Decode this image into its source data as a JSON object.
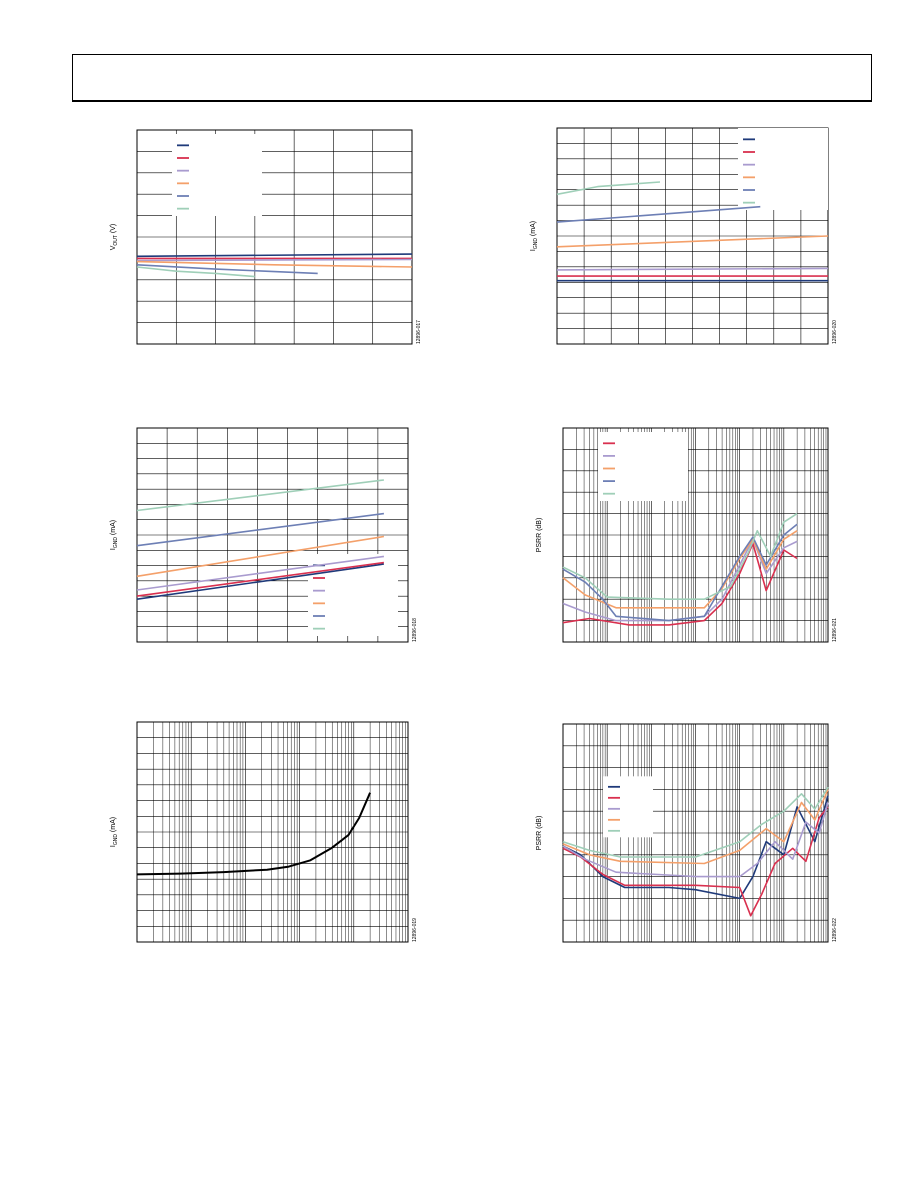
{
  "header": {
    "title": ""
  },
  "chart_data": [
    {
      "id": "c1",
      "type": "line",
      "ylabel_main": "V",
      "ylabel_sub": "OUT",
      "ylabel_tail": " (V)",
      "figure_id": "12896-017",
      "grid": {
        "x_div": 7,
        "y_div": 10,
        "minor_x": false,
        "log_x": false
      },
      "ylim": [
        0,
        10
      ],
      "xlim": [
        0,
        7
      ],
      "legend": {
        "position": "top-left",
        "entries": 6
      },
      "series": [
        {
          "color": "#1f3a7a",
          "points": [
            [
              0,
              4.1
            ],
            [
              7,
              4.2
            ]
          ]
        },
        {
          "color": "#d9304f",
          "points": [
            [
              0,
              4.0
            ],
            [
              7,
              4.0
            ]
          ]
        },
        {
          "color": "#a99bcf",
          "points": [
            [
              0,
              3.9
            ],
            [
              7,
              3.95
            ]
          ]
        },
        {
          "color": "#f4a06a",
          "points": [
            [
              0,
              3.85
            ],
            [
              3.5,
              3.7
            ],
            [
              7,
              3.6
            ]
          ]
        },
        {
          "color": "#6d7fb5",
          "points": [
            [
              0,
              3.7
            ],
            [
              2,
              3.5
            ],
            [
              4.6,
              3.3
            ]
          ]
        },
        {
          "color": "#9fcfb8",
          "points": [
            [
              0,
              3.6
            ],
            [
              1,
              3.4
            ],
            [
              2,
              3.3
            ],
            [
              3,
              3.15
            ]
          ]
        }
      ]
    },
    {
      "id": "c2",
      "type": "line",
      "ylabel_main": "I",
      "ylabel_sub": "GND",
      "ylabel_tail": " (mA)",
      "figure_id": "12896-020",
      "grid": {
        "x_div": 10,
        "y_div": 14,
        "minor_x": false,
        "log_x": false
      },
      "ylim": [
        0,
        14
      ],
      "xlim": [
        0,
        10
      ],
      "legend": {
        "position": "top-right",
        "entries": 6
      },
      "series": [
        {
          "color": "#1f3a7a",
          "points": [
            [
              0,
              4.1
            ],
            [
              10,
              4.1
            ]
          ]
        },
        {
          "color": "#d9304f",
          "points": [
            [
              0,
              4.4
            ],
            [
              10,
              4.4
            ]
          ]
        },
        {
          "color": "#a99bcf",
          "points": [
            [
              0,
              4.8
            ],
            [
              10,
              4.9
            ]
          ]
        },
        {
          "color": "#f4a06a",
          "points": [
            [
              0,
              6.3
            ],
            [
              10,
              7.0
            ]
          ]
        },
        {
          "color": "#6d7fb5",
          "points": [
            [
              0,
              7.9
            ],
            [
              7.5,
              8.9
            ]
          ]
        },
        {
          "color": "#9fcfb8",
          "points": [
            [
              0,
              9.7
            ],
            [
              1.5,
              10.2
            ],
            [
              3.8,
              10.5
            ]
          ]
        }
      ]
    },
    {
      "id": "c3",
      "type": "line",
      "ylabel_main": "I",
      "ylabel_sub": "GND",
      "ylabel_tail": " (mA)",
      "figure_id": "12896-018",
      "grid": {
        "x_div": 9,
        "y_div": 14,
        "minor_x": false,
        "log_x": false
      },
      "ylim": [
        0,
        14
      ],
      "xlim": [
        0,
        9
      ],
      "legend": {
        "position": "bottom-right",
        "entries": 6
      },
      "series": [
        {
          "color": "#1f3a7a",
          "points": [
            [
              0,
              2.8
            ],
            [
              8.2,
              5.1
            ]
          ]
        },
        {
          "color": "#d9304f",
          "points": [
            [
              0,
              3.0
            ],
            [
              8.2,
              5.2
            ]
          ]
        },
        {
          "color": "#a99bcf",
          "points": [
            [
              0,
              3.4
            ],
            [
              8.2,
              5.6
            ]
          ]
        },
        {
          "color": "#f4a06a",
          "points": [
            [
              0,
              4.3
            ],
            [
              8.2,
              6.9
            ]
          ]
        },
        {
          "color": "#6d7fb5",
          "points": [
            [
              0,
              6.3
            ],
            [
              8.2,
              8.4
            ]
          ]
        },
        {
          "color": "#9fcfb8",
          "points": [
            [
              0,
              8.6
            ],
            [
              8.2,
              10.6
            ]
          ]
        }
      ]
    },
    {
      "id": "c4",
      "type": "line",
      "ylabel_main": "PSRR (dB)",
      "ylabel_sub": "",
      "ylabel_tail": "",
      "figure_id": "12896-021",
      "grid": {
        "x_div": 6,
        "y_div": 10,
        "minor_x": true,
        "log_x": true
      },
      "ylim": [
        0,
        10
      ],
      "xlim": [
        0,
        6
      ],
      "legend": {
        "position": "top-left",
        "entries": 5
      },
      "series": [
        {
          "color": "#d9304f",
          "points": [
            [
              0,
              0.9
            ],
            [
              0.6,
              1.1
            ],
            [
              1.5,
              0.8
            ],
            [
              2.4,
              0.8
            ],
            [
              3.2,
              1.0
            ],
            [
              3.6,
              1.8
            ],
            [
              4.0,
              3.2
            ],
            [
              4.3,
              4.6
            ],
            [
              4.6,
              2.4
            ],
            [
              5.0,
              4.3
            ],
            [
              5.3,
              3.9
            ]
          ]
        },
        {
          "color": "#a99bcf",
          "points": [
            [
              0,
              1.8
            ],
            [
              0.5,
              1.4
            ],
            [
              1.2,
              1.0
            ],
            [
              2.4,
              1.0
            ],
            [
              3.2,
              1.2
            ],
            [
              3.6,
              2.0
            ],
            [
              4.0,
              3.6
            ],
            [
              4.3,
              4.8
            ],
            [
              4.6,
              3.2
            ],
            [
              5.0,
              4.4
            ],
            [
              5.3,
              4.7
            ]
          ]
        },
        {
          "color": "#f4a06a",
          "points": [
            [
              0,
              3.0
            ],
            [
              0.5,
              2.2
            ],
            [
              1.2,
              1.6
            ],
            [
              3.2,
              1.6
            ],
            [
              3.6,
              2.5
            ],
            [
              4.0,
              3.9
            ],
            [
              4.3,
              4.8
            ],
            [
              4.6,
              3.4
            ],
            [
              5.0,
              4.8
            ],
            [
              5.3,
              5.2
            ]
          ]
        },
        {
          "color": "#6d7fb5",
          "points": [
            [
              0,
              3.4
            ],
            [
              0.5,
              2.8
            ],
            [
              0.9,
              2.0
            ],
            [
              1.2,
              1.2
            ],
            [
              2.4,
              1.0
            ],
            [
              3.2,
              1.2
            ],
            [
              3.6,
              2.6
            ],
            [
              4.0,
              4.0
            ],
            [
              4.3,
              4.9
            ],
            [
              4.6,
              3.6
            ],
            [
              5.0,
              5.0
            ],
            [
              5.3,
              5.5
            ]
          ]
        },
        {
          "color": "#9fcfb8",
          "points": [
            [
              0,
              3.5
            ],
            [
              0.5,
              3.0
            ],
            [
              1.0,
              2.1
            ],
            [
              2.4,
              2.0
            ],
            [
              3.2,
              2.0
            ],
            [
              3.8,
              2.6
            ],
            [
              4.2,
              4.2
            ],
            [
              4.4,
              5.2
            ],
            [
              4.7,
              4.0
            ],
            [
              5.0,
              5.6
            ],
            [
              5.3,
              6.0
            ]
          ]
        }
      ]
    },
    {
      "id": "c5",
      "type": "line",
      "ylabel_main": "I",
      "ylabel_sub": "GND",
      "ylabel_tail": " (mA)",
      "figure_id": "12896-019",
      "grid": {
        "x_div": 5,
        "y_div": 14,
        "minor_x": true,
        "log_x": true
      },
      "ylim": [
        0,
        14
      ],
      "xlim": [
        0,
        5
      ],
      "legend": {
        "position": "none",
        "entries": 0
      },
      "series": [
        {
          "color": "#000000",
          "points": [
            [
              0,
              4.3
            ],
            [
              0.8,
              4.35
            ],
            [
              1.6,
              4.45
            ],
            [
              2.4,
              4.6
            ],
            [
              2.8,
              4.8
            ],
            [
              3.2,
              5.2
            ],
            [
              3.6,
              6.0
            ],
            [
              3.9,
              6.8
            ],
            [
              4.1,
              7.9
            ],
            [
              4.3,
              9.5
            ]
          ]
        }
      ]
    },
    {
      "id": "c6",
      "type": "line",
      "ylabel_main": "PSRR (dB)",
      "ylabel_sub": "",
      "ylabel_tail": "",
      "figure_id": "12896-022",
      "grid": {
        "x_div": 6,
        "y_div": 10,
        "minor_x": true,
        "log_x": true
      },
      "ylim": [
        0,
        10
      ],
      "xlim": [
        0,
        6
      ],
      "legend": {
        "position": "middle-left",
        "entries": 5
      },
      "series": [
        {
          "color": "#1f3a7a",
          "points": [
            [
              0,
              4.4
            ],
            [
              0.4,
              4.0
            ],
            [
              0.9,
              3.0
            ],
            [
              1.4,
              2.5
            ],
            [
              2.4,
              2.5
            ],
            [
              3.0,
              2.4
            ],
            [
              4.0,
              2.0
            ],
            [
              4.3,
              3.0
            ],
            [
              4.6,
              4.6
            ],
            [
              5.0,
              4.0
            ],
            [
              5.3,
              6.2
            ],
            [
              5.7,
              4.6
            ],
            [
              6.0,
              6.7
            ]
          ]
        },
        {
          "color": "#d9304f",
          "points": [
            [
              0,
              4.3
            ],
            [
              0.4,
              3.9
            ],
            [
              0.9,
              3.1
            ],
            [
              1.4,
              2.6
            ],
            [
              3.0,
              2.6
            ],
            [
              4.0,
              2.5
            ],
            [
              4.25,
              1.2
            ],
            [
              4.5,
              2.2
            ],
            [
              4.8,
              3.6
            ],
            [
              5.2,
              4.3
            ],
            [
              5.5,
              3.7
            ],
            [
              5.8,
              5.7
            ],
            [
              6.0,
              6.2
            ]
          ]
        },
        {
          "color": "#a99bcf",
          "points": [
            [
              0,
              4.4
            ],
            [
              0.5,
              3.8
            ],
            [
              1.2,
              3.2
            ],
            [
              3.0,
              3.0
            ],
            [
              4.0,
              3.0
            ],
            [
              4.4,
              3.6
            ],
            [
              4.8,
              4.6
            ],
            [
              5.2,
              3.8
            ],
            [
              5.5,
              5.5
            ],
            [
              5.8,
              5.0
            ],
            [
              6.0,
              6.4
            ]
          ]
        },
        {
          "color": "#f4a06a",
          "points": [
            [
              0,
              4.5
            ],
            [
              0.6,
              4.0
            ],
            [
              1.3,
              3.7
            ],
            [
              3.2,
              3.6
            ],
            [
              4.0,
              4.2
            ],
            [
              4.6,
              5.2
            ],
            [
              5.0,
              4.6
            ],
            [
              5.4,
              6.4
            ],
            [
              5.7,
              5.6
            ],
            [
              6.0,
              7.0
            ]
          ]
        },
        {
          "color": "#9fcfb8",
          "points": [
            [
              0,
              4.6
            ],
            [
              0.6,
              4.2
            ],
            [
              1.3,
              3.9
            ],
            [
              3.0,
              3.9
            ],
            [
              4.0,
              4.6
            ],
            [
              4.5,
              5.4
            ],
            [
              5.0,
              6.0
            ],
            [
              5.4,
              6.8
            ],
            [
              5.7,
              6.1
            ],
            [
              6.0,
              7.1
            ]
          ]
        }
      ]
    }
  ]
}
